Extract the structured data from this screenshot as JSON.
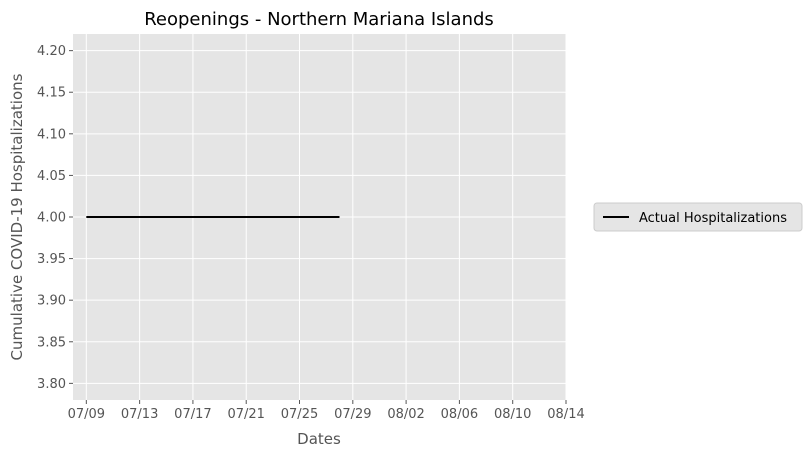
{
  "chart_data": {
    "type": "line",
    "title": "Reopenings - Northern Mariana Islands",
    "xlabel": "Dates",
    "ylabel": "Cumulative COVID-19 Hospitalizations",
    "x_ticks": [
      "07/09",
      "07/13",
      "07/17",
      "07/21",
      "07/25",
      "07/29",
      "08/02",
      "08/06",
      "08/10",
      "08/14"
    ],
    "y_ticks": [
      "3.80",
      "3.85",
      "3.90",
      "3.95",
      "4.00",
      "4.05",
      "4.10",
      "4.15",
      "4.20"
    ],
    "xlim": [
      "2020-07-08",
      "2020-08-14"
    ],
    "ylim": [
      3.78,
      4.22
    ],
    "grid": true,
    "legend_position": "outside-right",
    "colors": {
      "plot_background": "#e5e5e5",
      "grid": "#ffffff",
      "line": "#000000"
    },
    "series": [
      {
        "name": "Actual Hospitalizations",
        "x": [
          "2020-07-09",
          "2020-07-10",
          "2020-07-11",
          "2020-07-12",
          "2020-07-13",
          "2020-07-14",
          "2020-07-15",
          "2020-07-16",
          "2020-07-17",
          "2020-07-18",
          "2020-07-19",
          "2020-07-20",
          "2020-07-21",
          "2020-07-22",
          "2020-07-23",
          "2020-07-24",
          "2020-07-25",
          "2020-07-26",
          "2020-07-27",
          "2020-07-28"
        ],
        "y": [
          4,
          4,
          4,
          4,
          4,
          4,
          4,
          4,
          4,
          4,
          4,
          4,
          4,
          4,
          4,
          4,
          4,
          4,
          4,
          4
        ]
      }
    ]
  }
}
